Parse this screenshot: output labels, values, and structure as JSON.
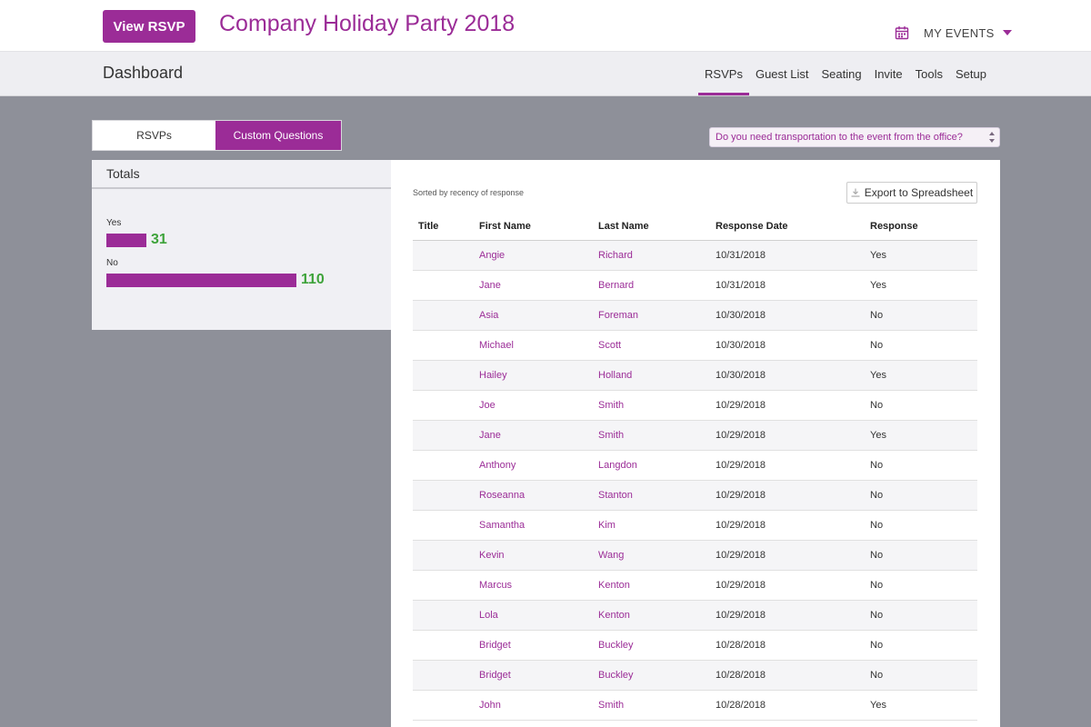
{
  "header": {
    "view_rsvp_label": "View RSVP",
    "event_title": "Company Holiday Party 2018",
    "my_events_label": "MY EVENTS"
  },
  "subbar": {
    "title": "Dashboard",
    "nav": [
      "RSVPs",
      "Guest List",
      "Seating",
      "Invite",
      "Tools",
      "Setup"
    ],
    "active_nav": "RSVPs"
  },
  "tabs": {
    "rsvps_label": "RSVPs",
    "custom_questions_label": "Custom Questions",
    "active": "Custom Questions"
  },
  "question_select": {
    "value": "Do you need transportation to the event from the office?"
  },
  "totals": {
    "title": "Totals",
    "yes_label": "Yes",
    "yes_count": "31",
    "no_label": "No",
    "no_count": "110"
  },
  "table": {
    "sort_note": "Sorted by recency of response",
    "export_label": "Export to Spreadsheet",
    "columns": [
      "Title",
      "First Name",
      "Last Name",
      "Response Date",
      "Response"
    ],
    "rows": [
      {
        "title": "",
        "first": "Angie",
        "last": "Richard",
        "date": "10/31/2018",
        "response": "Yes"
      },
      {
        "title": "",
        "first": "Jane",
        "last": "Bernard",
        "date": "10/31/2018",
        "response": "Yes"
      },
      {
        "title": "",
        "first": "Asia",
        "last": "Foreman",
        "date": "10/30/2018",
        "response": "No"
      },
      {
        "title": "",
        "first": "Michael",
        "last": "Scott",
        "date": "10/30/2018",
        "response": "No"
      },
      {
        "title": "",
        "first": "Hailey",
        "last": "Holland",
        "date": "10/30/2018",
        "response": "Yes"
      },
      {
        "title": "",
        "first": "Joe",
        "last": "Smith",
        "date": "10/29/2018",
        "response": "No"
      },
      {
        "title": "",
        "first": "Jane",
        "last": "Smith",
        "date": "10/29/2018",
        "response": "Yes"
      },
      {
        "title": "",
        "first": "Anthony",
        "last": "Langdon",
        "date": "10/29/2018",
        "response": "No"
      },
      {
        "title": "",
        "first": "Roseanna",
        "last": "Stanton",
        "date": "10/29/2018",
        "response": "No"
      },
      {
        "title": "",
        "first": "Samantha",
        "last": "Kim",
        "date": "10/29/2018",
        "response": "No"
      },
      {
        "title": "",
        "first": "Kevin",
        "last": "Wang",
        "date": "10/29/2018",
        "response": "No"
      },
      {
        "title": "",
        "first": "Marcus",
        "last": "Kenton",
        "date": "10/29/2018",
        "response": "No"
      },
      {
        "title": "",
        "first": "Lola",
        "last": "Kenton",
        "date": "10/29/2018",
        "response": "No"
      },
      {
        "title": "",
        "first": "Bridget",
        "last": "Buckley",
        "date": "10/28/2018",
        "response": "No"
      },
      {
        "title": "",
        "first": "Bridget",
        "last": "Buckley",
        "date": "10/28/2018",
        "response": "No"
      },
      {
        "title": "",
        "first": "John",
        "last": "Smith",
        "date": "10/28/2018",
        "response": "Yes"
      }
    ]
  },
  "colors": {
    "accent": "#9b2c97",
    "count_green": "#3ea33a",
    "background": "#8e9099"
  },
  "icons": [
    "calendar-icon",
    "chevron-down-icon",
    "select-arrows-icon",
    "download-icon"
  ]
}
